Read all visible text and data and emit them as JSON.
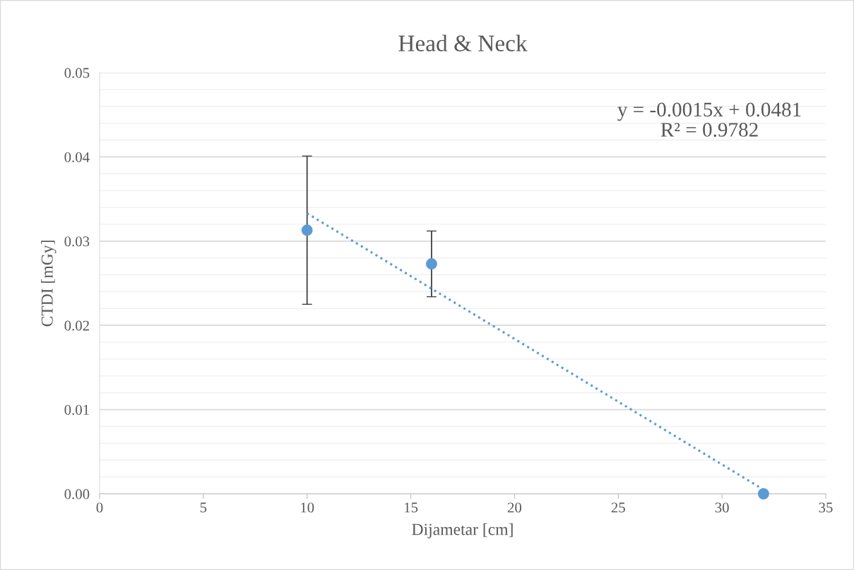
{
  "chart_data": {
    "type": "scatter",
    "title": "Head & Neck",
    "xlabel": "Dijametar [cm]",
    "ylabel": "CTDI [mGy]",
    "xlim": [
      0,
      35
    ],
    "xticks": [
      0,
      5,
      10,
      15,
      20,
      25,
      30,
      35
    ],
    "ylim": [
      0,
      0.05
    ],
    "yticks": [
      {
        "value": 0,
        "label": "0.00"
      },
      0.01,
      0.02,
      0.03,
      0.04,
      0.05
    ],
    "grid": "y",
    "legend": false,
    "series": [
      {
        "color": "#5b9bd5",
        "marker": "circle",
        "x": [
          10,
          16,
          32
        ],
        "values": [
          0.0313,
          0.0273,
          0.0
        ],
        "errors": [
          [
            0.0225,
            0.0401
          ],
          [
            0.0234,
            0.0312
          ],
          null
        ]
      },
      {
        "type": "line",
        "color": "#5b9bd5",
        "line_style": "dotted",
        "marker": "none",
        "x": [
          10,
          32
        ],
        "values": [
          0.0333,
          0.0005
        ]
      }
    ],
    "annotations": [
      "y = -0.0015x + 0.0481\nR² = 0.9782"
    ]
  }
}
